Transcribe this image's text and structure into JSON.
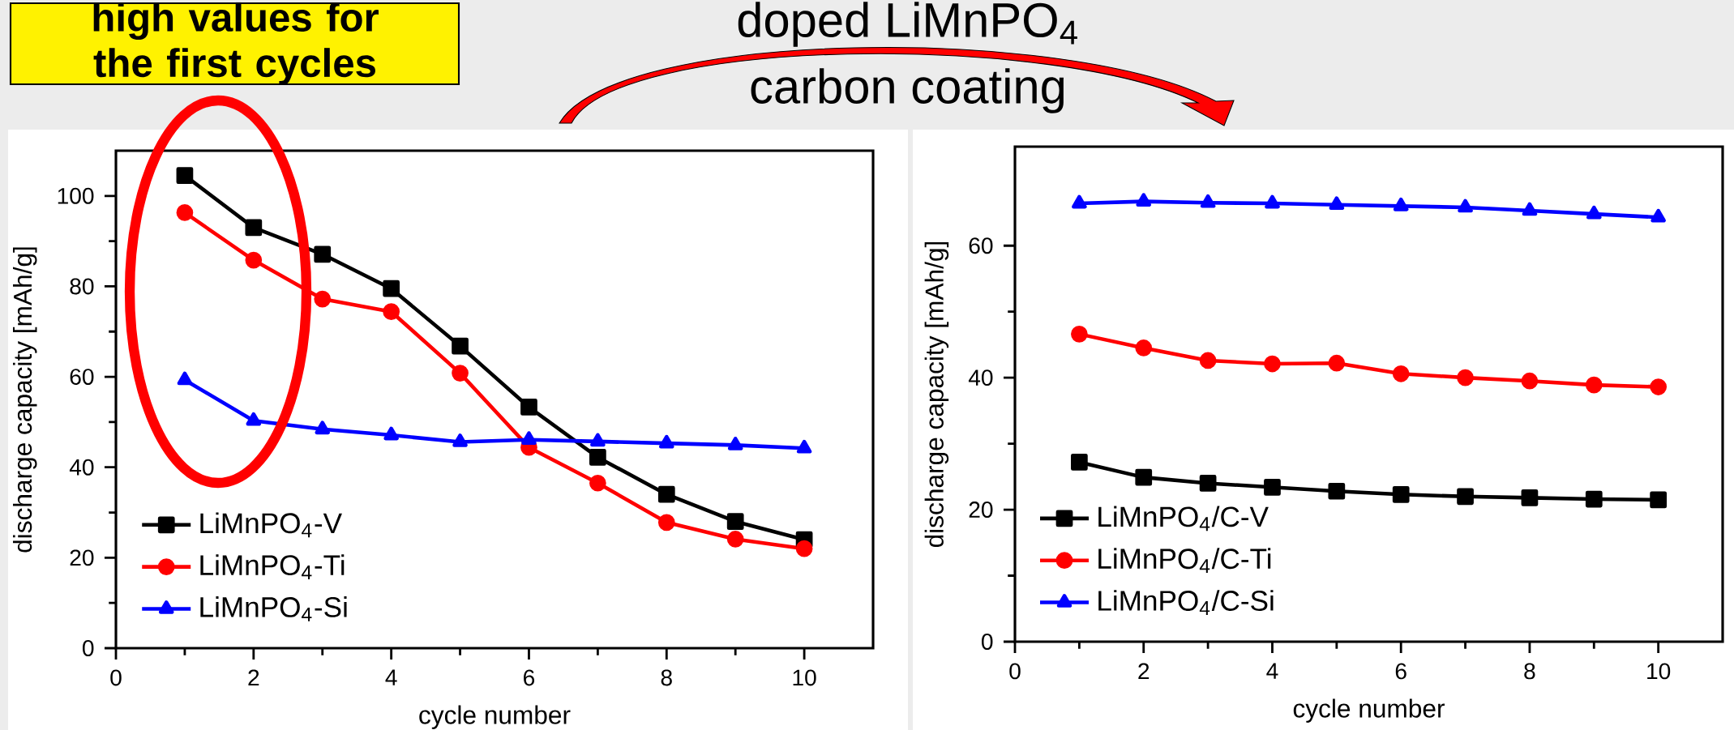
{
  "chart_data": [
    {
      "type": "line",
      "xlabel": "cycle number",
      "ylabel": "discharge capacity [mAh/g]",
      "x": [
        1,
        2,
        3,
        4,
        5,
        6,
        7,
        8,
        9,
        10
      ],
      "xlim": [
        0,
        11
      ],
      "xticks": [
        0,
        2,
        4,
        6,
        8,
        10
      ],
      "ylim": [
        0,
        110
      ],
      "yticks": [
        0,
        20,
        40,
        60,
        80,
        100
      ],
      "legend": "bottom left",
      "grid": false,
      "line_style": "solid",
      "annotations": [
        "high values for the first cycles"
      ],
      "series": [
        {
          "name": "LiMnPO$_{4}$-V",
          "color": "#000000",
          "marker": "square",
          "values": [
            104.5,
            93.0,
            87.1,
            79.5,
            66.8,
            53.3,
            42.2,
            34.0,
            28.0,
            24.0
          ]
        },
        {
          "name": "LiMnPO$_{4}$-Ti",
          "color": "#ff0000",
          "marker": "circle",
          "values": [
            96.3,
            85.8,
            77.2,
            74.4,
            60.8,
            44.4,
            36.5,
            27.8,
            24.1,
            22.0
          ]
        },
        {
          "name": "LiMnPO$_{4}$-Si",
          "color": "#0000ff",
          "marker": "triangle",
          "values": [
            59.3,
            50.3,
            48.4,
            47.1,
            45.6,
            46.1,
            45.7,
            45.3,
            44.9,
            44.2
          ]
        }
      ]
    },
    {
      "type": "line",
      "xlabel": "cycle number",
      "ylabel": "discharge capacity [mAh/g]",
      "x": [
        1,
        2,
        3,
        4,
        5,
        6,
        7,
        8,
        9,
        10
      ],
      "xlim": [
        0,
        11
      ],
      "xticks": [
        0,
        2,
        4,
        6,
        8,
        10
      ],
      "ylim": [
        0,
        75
      ],
      "yticks": [
        0,
        20,
        40,
        60
      ],
      "legend": "bottom left",
      "grid": false,
      "line_style": "solid",
      "annotations": [
        "doped LiMnPO$_{4}$",
        "carbon coating"
      ],
      "series": [
        {
          "name": "LiMnPO$_{4}$/C-V",
          "color": "#000000",
          "marker": "square",
          "values": [
            27.2,
            24.9,
            24.0,
            23.4,
            22.8,
            22.3,
            22.0,
            21.8,
            21.6,
            21.5
          ]
        },
        {
          "name": "LiMnPO$_{4}$/C-Ti",
          "color": "#ff0000",
          "marker": "circle",
          "values": [
            46.6,
            44.5,
            42.6,
            42.1,
            42.2,
            40.6,
            40.0,
            39.5,
            38.9,
            38.6
          ]
        },
        {
          "name": "LiMnPO$_{4}$/C-Si",
          "color": "#0000ff",
          "marker": "triangle",
          "values": [
            66.4,
            66.7,
            66.5,
            66.4,
            66.2,
            66.0,
            65.8,
            65.3,
            64.8,
            64.3
          ]
        }
      ]
    }
  ]
}
